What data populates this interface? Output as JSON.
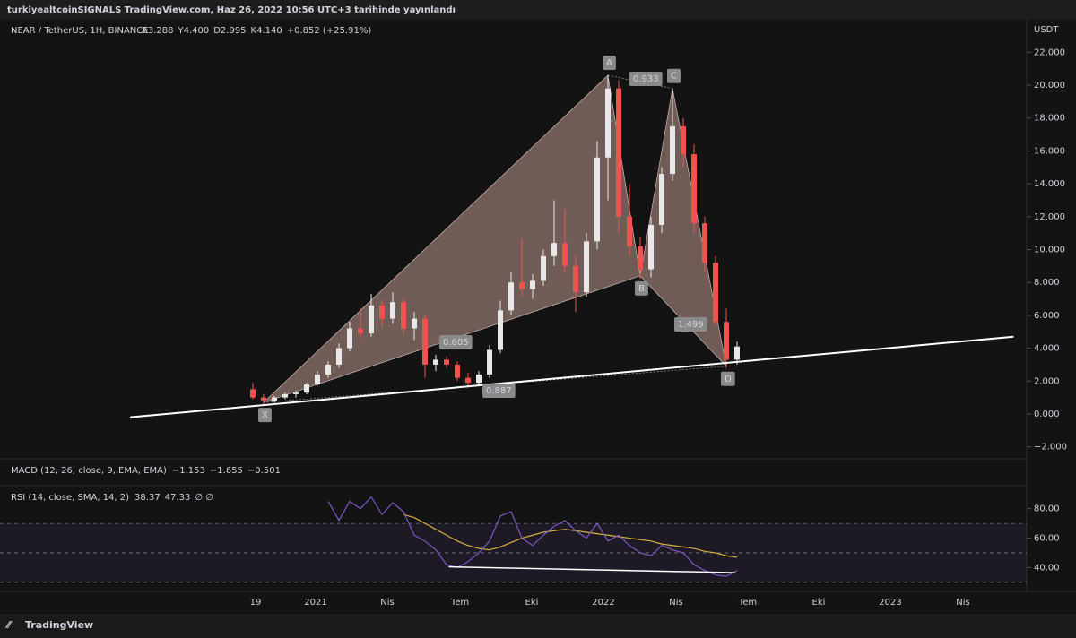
{
  "header": {
    "text": "turkiyealtcoinSIGNALS TradingView.com, Haz 26, 2022 10:56 UTC+3 tarihinde yayınlandı"
  },
  "footer": {
    "brand": "TradingView"
  },
  "chart_data": {
    "type": "candlestick",
    "symbol": "NEAR / TetherUS, 1H, BINANCE",
    "legend_values": [
      "A3.288",
      "Y4.400",
      "D2.995",
      "K4.140",
      "+0.852 (+25.91%)"
    ],
    "y_axis_title": "USDT",
    "up_color": "#e8e8e8",
    "down_color": "#ef5350",
    "ylim": [
      -2.4,
      23
    ],
    "yticks": [
      {
        "value": 22,
        "label": "22.000"
      },
      {
        "value": 20,
        "label": "20.000"
      },
      {
        "value": 18,
        "label": "18.000"
      },
      {
        "value": 16,
        "label": "16.000"
      },
      {
        "value": 14,
        "label": "14.000"
      },
      {
        "value": 12,
        "label": "12.000"
      },
      {
        "value": 10,
        "label": "10.000"
      },
      {
        "value": 8,
        "label": "8.000"
      },
      {
        "value": 6,
        "label": "6.000"
      },
      {
        "value": 4,
        "label": "4.000"
      },
      {
        "value": 2,
        "label": "2.000"
      },
      {
        "value": 0,
        "label": "0.000"
      },
      {
        "value": -2,
        "label": "−2.000"
      }
    ],
    "xtick_labels": [
      "19",
      "2021",
      "Nis",
      "Tem",
      "Eki",
      "2022",
      "Nis",
      "Tem",
      "Eki",
      "2023",
      "Nis"
    ],
    "ohlc": [
      [
        1.5,
        1.9,
        0.9,
        1.0
      ],
      [
        1.0,
        1.2,
        0.6,
        0.8
      ],
      [
        0.8,
        1.1,
        0.7,
        1.0
      ],
      [
        1.0,
        1.3,
        0.9,
        1.2
      ],
      [
        1.2,
        1.4,
        1.0,
        1.3
      ],
      [
        1.3,
        1.9,
        1.2,
        1.8
      ],
      [
        1.8,
        2.6,
        1.7,
        2.4
      ],
      [
        2.4,
        3.2,
        2.2,
        3.0
      ],
      [
        3.0,
        4.3,
        2.8,
        4.0
      ],
      [
        4.0,
        5.6,
        3.8,
        5.2
      ],
      [
        5.2,
        6.4,
        4.6,
        4.9
      ],
      [
        4.9,
        7.3,
        4.7,
        6.6
      ],
      [
        6.6,
        6.9,
        5.3,
        5.8
      ],
      [
        5.8,
        7.4,
        5.5,
        6.8
      ],
      [
        6.8,
        7.0,
        4.8,
        5.2
      ],
      [
        5.2,
        6.2,
        4.5,
        5.8
      ],
      [
        5.8,
        6.0,
        2.2,
        3.0
      ],
      [
        3.0,
        3.6,
        2.6,
        3.3
      ],
      [
        3.3,
        3.5,
        2.8,
        3.0
      ],
      [
        3.0,
        3.2,
        2.0,
        2.2
      ],
      [
        2.2,
        2.5,
        1.6,
        1.9
      ],
      [
        1.9,
        2.6,
        1.7,
        2.4
      ],
      [
        2.4,
        4.2,
        2.2,
        3.9
      ],
      [
        3.9,
        6.9,
        3.7,
        6.3
      ],
      [
        6.3,
        8.6,
        6.0,
        8.0
      ],
      [
        8.0,
        10.7,
        7.2,
        7.6
      ],
      [
        7.6,
        8.5,
        7.0,
        8.1
      ],
      [
        8.1,
        10.0,
        7.8,
        9.6
      ],
      [
        9.6,
        13.0,
        9.0,
        10.4
      ],
      [
        10.4,
        12.5,
        8.6,
        9.0
      ],
      [
        9.0,
        9.6,
        6.2,
        7.4
      ],
      [
        7.4,
        11.0,
        7.1,
        10.5
      ],
      [
        10.5,
        16.6,
        10.0,
        15.6
      ],
      [
        15.6,
        20.6,
        13.0,
        19.8
      ],
      [
        19.8,
        20.3,
        11.0,
        12.0
      ],
      [
        12.0,
        14.0,
        9.6,
        10.2
      ],
      [
        10.2,
        10.8,
        8.2,
        8.8
      ],
      [
        8.8,
        12.0,
        8.3,
        11.5
      ],
      [
        11.5,
        15.0,
        11.0,
        14.6
      ],
      [
        14.6,
        19.8,
        14.2,
        17.5
      ],
      [
        17.5,
        18.0,
        15.0,
        15.8
      ],
      [
        15.8,
        16.4,
        11.0,
        11.6
      ],
      [
        11.6,
        12.0,
        8.6,
        9.2
      ],
      [
        9.2,
        9.6,
        5.4,
        5.6
      ],
      [
        5.6,
        6.4,
        2.8,
        3.3
      ],
      [
        3.3,
        4.4,
        3.0,
        4.1
      ]
    ],
    "pattern": {
      "color": "rgba(205,165,155,0.5)",
      "points": [
        {
          "label": "X",
          "index": 1,
          "value": 0.7
        },
        {
          "label": "A",
          "index": 33,
          "value": 20.6
        },
        {
          "label": "B",
          "index": 36,
          "value": 8.4
        },
        {
          "label": "C",
          "index": 39,
          "value": 19.8
        },
        {
          "label": "D",
          "index": 44,
          "value": 2.9
        }
      ],
      "ratios": [
        "0.605",
        "0.887",
        "0.933",
        "1.499"
      ]
    },
    "trendline": {
      "start": [
        -11.4,
        -0.2
      ],
      "end": [
        70.7,
        4.7
      ]
    },
    "macd": {
      "label": "MACD (12, 26, close, 9, EMA, EMA)",
      "values": [
        {
          "value": -1.153,
          "label": "−1.153"
        },
        {
          "value": -1.655,
          "label": "−1.655"
        },
        {
          "value": -0.501,
          "label": "−0.501"
        }
      ],
      "colors": [
        "#d1d4dc",
        "#2962ff",
        "#ff6d00"
      ]
    },
    "rsi": {
      "label": "RSI (14, close, SMA, 14, 2)",
      "last": [
        38.37,
        47.33
      ],
      "na": "∅ ∅",
      "color": "#7e57c2",
      "sma_color": "#d4b13f",
      "ylim": [
        25,
        92
      ],
      "yticks": [
        {
          "value": 80,
          "label": "80.00"
        },
        {
          "value": 60,
          "label": "60.00"
        },
        {
          "value": 40,
          "label": "40.00"
        }
      ],
      "bands": [
        70,
        50,
        30
      ],
      "values": [
        null,
        null,
        null,
        null,
        null,
        null,
        null,
        85,
        72,
        85,
        80,
        88,
        76,
        84,
        78,
        62,
        58,
        52,
        42,
        40,
        44,
        50,
        58,
        75,
        78,
        60,
        55,
        62,
        68,
        72,
        65,
        60,
        70,
        58,
        62,
        55,
        50,
        48,
        55,
        52,
        50,
        42,
        38,
        35,
        34,
        38
      ],
      "sma": [
        null,
        null,
        null,
        null,
        null,
        null,
        null,
        null,
        null,
        null,
        null,
        null,
        null,
        null,
        76,
        74,
        70,
        66,
        62,
        58,
        55,
        53,
        52,
        54,
        57,
        60,
        62,
        64,
        65,
        66,
        65,
        64,
        63,
        62,
        61,
        60,
        59,
        58,
        56,
        55,
        54,
        53,
        51,
        50,
        48,
        47
      ],
      "trendline": {
        "start": [
          18.2,
          40.5
        ],
        "end": [
          44.8,
          36.5
        ]
      }
    }
  }
}
